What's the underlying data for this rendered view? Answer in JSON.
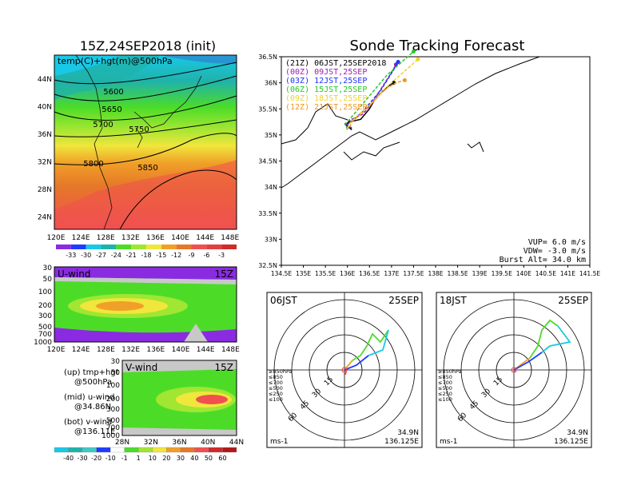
{
  "colors": {
    "purple": "#8a2be2",
    "blue": "#1e3cff",
    "cyan": "#19c8e6",
    "teal": "#20b2aa",
    "green": "#4cdc28",
    "yellowgreen": "#a0e632",
    "yellow": "#f0e63c",
    "orange": "#f0a028",
    "darkorange": "#e67828",
    "red": "#f05050",
    "gray": "#c8c8c8",
    "track_black": "#000000",
    "track_purple": "#9b1eb4",
    "track_blue": "#1e32ff",
    "track_green": "#28c828",
    "track_yellow": "#f0d228",
    "track_orange": "#f09628"
  },
  "left_title": "15Z,24SEP2018 (init)",
  "right_title": "Sonde Tracking Forecast",
  "chart_data": [
    {
      "type": "heatmap",
      "name": "temp+hgt map",
      "label": "temp(C)+hgt(m)@500hPa",
      "x_ticks": [
        "120E",
        "124E",
        "128E",
        "132E",
        "136E",
        "140E",
        "144E",
        "148E"
      ],
      "y_ticks": [
        "44N",
        "40N",
        "36N",
        "32N",
        "28N",
        "24N"
      ],
      "contour_labels": [
        "5600",
        "5650",
        "5700",
        "5750",
        "5800",
        "5850"
      ],
      "colorbar": [
        "-33",
        "-30",
        "-27",
        "-24",
        "-21",
        "-18",
        "-15",
        "-12",
        "-9",
        "-6",
        "-3"
      ]
    },
    {
      "type": "heatmap",
      "name": "u-wind section",
      "label": "U-wind",
      "time": "15Z",
      "x_ticks": [
        "120E",
        "124E",
        "128E",
        "132E",
        "136E",
        "140E",
        "144E",
        "148E"
      ],
      "y_ticks": [
        "30",
        "50",
        "100",
        "200",
        "300",
        "500",
        "700",
        "1000"
      ]
    },
    {
      "type": "heatmap",
      "name": "v-wind section",
      "label": "V-wind",
      "time": "15Z",
      "x_ticks": [
        "28N",
        "32N",
        "36N",
        "40N",
        "44N"
      ],
      "y_ticks": [
        "30",
        "50",
        "100",
        "200",
        "300",
        "500",
        "700",
        "1000"
      ],
      "colorbar": [
        "-40",
        "-30",
        "-20",
        "-10",
        "-1",
        "1",
        "10",
        "20",
        "30",
        "40",
        "50",
        "60"
      ]
    },
    {
      "type": "line",
      "name": "sonde tracking forecast",
      "x_ticks": [
        "134.5E",
        "135E",
        "135.5E",
        "136E",
        "136.5E",
        "137E",
        "137.5E",
        "138E",
        "138.5E",
        "139E",
        "139.5E",
        "140E",
        "140.5E",
        "141E",
        "141.5E"
      ],
      "y_ticks": [
        "36.5N",
        "36N",
        "35.5N",
        "35N",
        "34.5N",
        "34N",
        "33.5N",
        "33N",
        "32.5N"
      ],
      "xlim": [
        134.5,
        141.5
      ],
      "ylim": [
        32.5,
        36.5
      ],
      "series": [
        {
          "name": "(21Z)  06JST,25SEP2018",
          "color": "track_black",
          "x": [
            136.1,
            135.95,
            136.05,
            136.3,
            136.5,
            136.6,
            136.75,
            136.95,
            137.05
          ],
          "y": [
            35.1,
            35.2,
            35.25,
            35.3,
            35.5,
            35.65,
            35.8,
            35.95,
            36.0
          ]
        },
        {
          "name": "(00Z)  09JST,25SEP",
          "color": "track_purple",
          "x": [
            136.05,
            135.95,
            136.1,
            136.35,
            136.55,
            136.7,
            136.85,
            137.0,
            137.1
          ],
          "y": [
            35.12,
            35.22,
            35.3,
            35.4,
            35.6,
            35.8,
            36.0,
            36.2,
            36.35
          ]
        },
        {
          "name": "(03Z)  12JST,25SEP",
          "color": "track_blue",
          "x": [
            136.1,
            136.0,
            136.15,
            136.35,
            136.55,
            136.75,
            136.9,
            137.05,
            137.15
          ],
          "y": [
            35.13,
            35.2,
            35.3,
            35.45,
            35.65,
            35.85,
            36.05,
            36.25,
            36.4
          ]
        },
        {
          "name": "(06Z)  15JST,25SEP",
          "color": "track_green",
          "x": [
            136.0,
            135.95,
            136.1,
            136.3,
            136.5,
            136.7,
            136.9,
            137.1,
            137.3,
            137.5
          ],
          "y": [
            35.1,
            35.2,
            35.35,
            35.55,
            35.75,
            35.95,
            36.15,
            36.3,
            36.45,
            36.6
          ]
        },
        {
          "name": "(09Z)  18JST,25SEP",
          "color": "track_yellow",
          "x": [
            136.0,
            136.05,
            136.2,
            136.4,
            136.6,
            136.8,
            137.0,
            137.2,
            137.4,
            137.6
          ],
          "y": [
            35.12,
            35.22,
            35.35,
            35.5,
            35.65,
            35.85,
            36.0,
            36.15,
            36.3,
            36.45
          ]
        },
        {
          "name": "(12Z)  21JST,25SEP",
          "color": "track_orange",
          "x": [
            136.05,
            136.1,
            136.3,
            136.5,
            136.7,
            136.9,
            137.1,
            137.3
          ],
          "y": [
            35.15,
            35.25,
            35.4,
            35.55,
            35.75,
            35.9,
            36.0,
            36.05
          ]
        }
      ],
      "info": {
        "vup": "VUP=  6.0 m/s",
        "vdw": "VDW= -3.0 m/s",
        "burst": "Burst Alt= 34.0 km"
      }
    },
    {
      "type": "line",
      "name": "hodograph 06JST",
      "time_label": "06JST",
      "date_label": "25SEP",
      "ring_labels": [
        "15",
        "30",
        "45",
        "60"
      ],
      "units": "ms-1",
      "lat": "34.9N",
      "lon": "136.125E",
      "levels": [
        "≥850hPa",
        "≤850",
        "≤700",
        "≤500",
        "≤250",
        "≤100"
      ]
    },
    {
      "type": "line",
      "name": "hodograph 18JST",
      "time_label": "18JST",
      "date_label": "25SEP",
      "ring_labels": [
        "15",
        "30",
        "45",
        "60"
      ],
      "units": "ms-1",
      "lat": "34.9N",
      "lon": "136.125E",
      "levels": [
        "≥850hPa",
        "≤850",
        "≤700",
        "≤500",
        "≤250",
        "≤100"
      ]
    }
  ],
  "notes": {
    "up": "(up) tmp+hgt",
    "up2": "@500hPa",
    "mid": "(mid) u-wind",
    "mid2": "@34.86N",
    "bot": "(bot) v-wind",
    "bot2": "@136.11E"
  }
}
